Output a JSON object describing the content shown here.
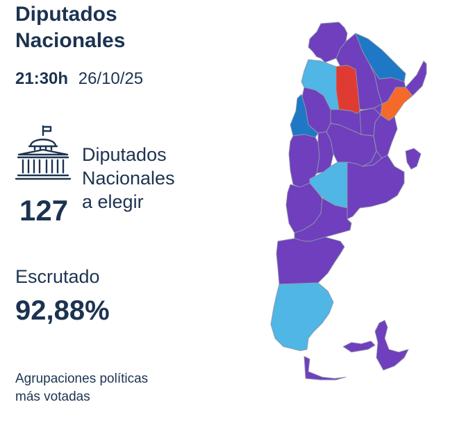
{
  "header": {
    "title_line1": "Diputados",
    "title_line2": "Nacionales"
  },
  "timestamp": {
    "hour": "21:30h",
    "date": "26/10/25"
  },
  "seats": {
    "label_line1": "Diputados",
    "label_line2": "Nacionales",
    "label_line3": "a elegir",
    "count": "127",
    "icon": "congress-building-icon"
  },
  "scrutiny": {
    "label": "Escrutado",
    "value": "92,88%"
  },
  "parties": {
    "label_line1": "Agrupaciones políticas",
    "label_line2": "más votadas"
  },
  "colors": {
    "text": "#1c3350",
    "purple": "#6f3fbd",
    "light_blue": "#4fb6e6",
    "blue": "#1e78c6",
    "red": "#e03b32",
    "orange": "#f56a2a"
  }
}
